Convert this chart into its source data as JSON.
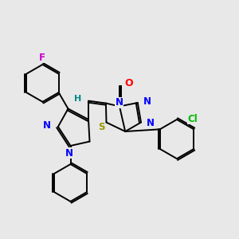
{
  "bg_color": "#e8e8e8",
  "bond_color": "#000000",
  "lw": 1.4,
  "dbo": 0.006,
  "atom_colors": {
    "O": "#ff0000",
    "N": "#0000ff",
    "S": "#999900",
    "Cl": "#00bb00",
    "F": "#cc00cc",
    "H": "#008888",
    "C": "#000000"
  },
  "fs": 8.5
}
